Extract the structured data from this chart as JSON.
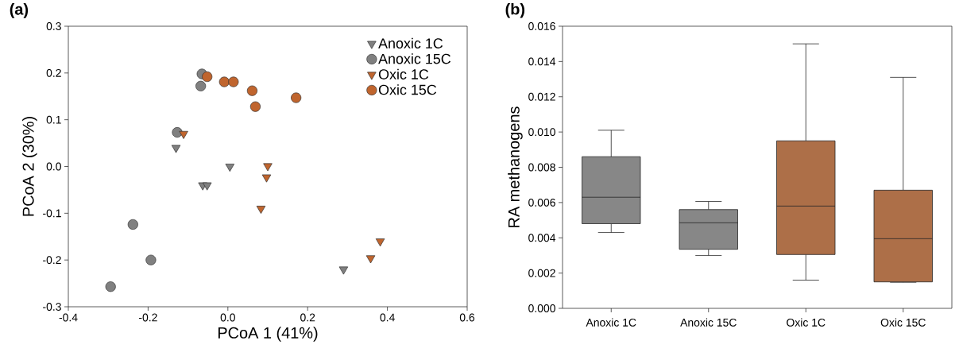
{
  "chart_data": [
    {
      "type": "scatter",
      "title": "(a)",
      "xlabel": "PCoA 1 (41%)",
      "ylabel": "PCoA 2 (30%)",
      "xlim": [
        -0.4,
        0.6
      ],
      "ylim": [
        -0.3,
        0.3
      ],
      "xticks": [
        {
          "value": -0.4,
          "label": "-0.4"
        },
        {
          "value": -0.2,
          "label": "-0.2"
        },
        {
          "value": 0,
          "label": "0.0"
        },
        {
          "value": 0.2,
          "label": "0.2"
        },
        {
          "value": 0.4,
          "label": "0.4"
        },
        {
          "value": 0.6,
          "label": "0.6"
        }
      ],
      "yticks": [
        {
          "value": -0.3,
          "label": "-0.3"
        },
        {
          "value": -0.2,
          "label": "-0.2"
        },
        {
          "value": -0.1,
          "label": "-0.1"
        },
        {
          "value": 0,
          "label": "0.0"
        },
        {
          "value": 0.1,
          "label": "0.1"
        },
        {
          "value": 0.2,
          "label": "0.2"
        },
        {
          "value": 0.3,
          "label": "0.3"
        }
      ],
      "legend": "top right",
      "grid": false,
      "series": [
        {
          "name": "Anoxic 1C",
          "color": "#808080",
          "marker": "triangle",
          "x": [
            -0.13,
            0.005,
            -0.063,
            -0.052,
            0.29
          ],
          "values": [
            0.04,
            0.0,
            -0.04,
            -0.04,
            -0.22
          ]
        },
        {
          "name": "Anoxic 15C",
          "color": "#808080",
          "marker": "circle",
          "x": [
            -0.065,
            -0.068,
            -0.127,
            -0.238,
            -0.193,
            -0.294
          ],
          "values": [
            0.198,
            0.172,
            0.073,
            -0.124,
            -0.2,
            -0.257
          ]
        },
        {
          "name": "Oxic 1C",
          "color": "#c0652e",
          "marker": "triangle",
          "x": [
            -0.111,
            0.1,
            0.097,
            0.083,
            0.358,
            0.382
          ],
          "values": [
            0.07,
            0.001,
            -0.023,
            -0.09,
            -0.196,
            -0.16
          ]
        },
        {
          "name": "Oxic 15C",
          "color": "#c0652e",
          "marker": "circle",
          "x": [
            -0.052,
            -0.009,
            0.014,
            0.061,
            0.069,
            0.171
          ],
          "values": [
            0.192,
            0.181,
            0.181,
            0.162,
            0.128,
            0.147
          ]
        }
      ]
    },
    {
      "type": "box",
      "title": "(b)",
      "ylabel": "RA methanogens",
      "categories": [
        "Anoxic 1C",
        "Anoxic 15C",
        "Oxic 1C",
        "Oxic 15C"
      ],
      "colors": [
        "#878787",
        "#878787",
        "#ad6f48",
        "#ad6f48"
      ],
      "ylim": [
        0,
        0.016
      ],
      "yticks": [
        {
          "value": 0,
          "label": "0.000"
        },
        {
          "value": 0.002,
          "label": "0.002"
        },
        {
          "value": 0.004,
          "label": "0.004"
        },
        {
          "value": 0.006,
          "label": "0.006"
        },
        {
          "value": 0.008,
          "label": "0.008"
        },
        {
          "value": 0.01,
          "label": "0.010"
        },
        {
          "value": 0.012,
          "label": "0.012"
        },
        {
          "value": 0.014,
          "label": "0.014"
        },
        {
          "value": 0.016,
          "label": "0.016"
        }
      ],
      "boxes": [
        {
          "low": 0.0043,
          "q1": 0.0048,
          "median": 0.0063,
          "q3": 0.0086,
          "high": 0.0101
        },
        {
          "low": 0.003,
          "q1": 0.00335,
          "median": 0.00485,
          "q3": 0.0056,
          "high": 0.00606
        },
        {
          "low": 0.0016,
          "q1": 0.00305,
          "median": 0.0058,
          "q3": 0.0095,
          "high": 0.015
        },
        {
          "low": 0.00148,
          "q1": 0.0015,
          "median": 0.00395,
          "q3": 0.0067,
          "high": 0.0131
        }
      ]
    }
  ]
}
